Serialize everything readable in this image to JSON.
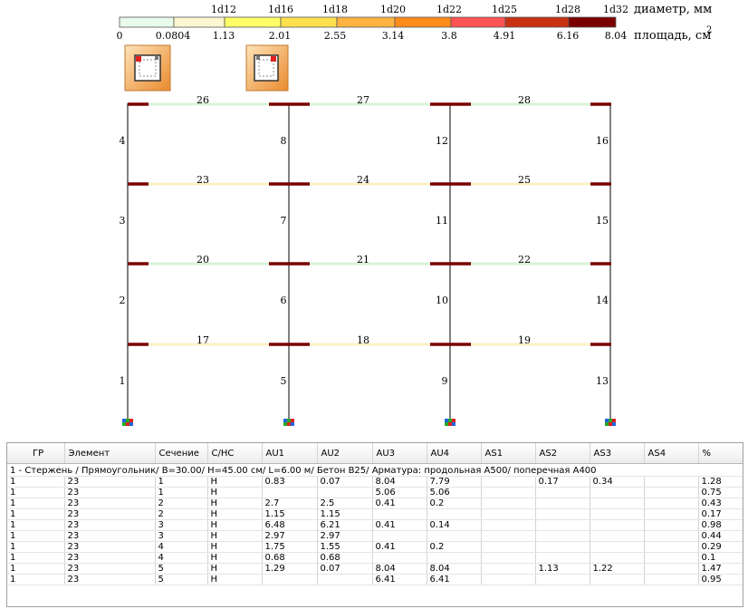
{
  "legend": {
    "diameter_label": "диаметр, мм",
    "area_label": "площадь, см",
    "area_sup": "2",
    "colors": [
      "#e9fbea",
      "#fff6d2",
      "#ffff66",
      "#ffe14d",
      "#ffb340",
      "#ff8c1a",
      "#ff5353",
      "#c83212",
      "#b41e0a",
      "#7a0000"
    ],
    "diameters": [
      "1d12",
      "1d16",
      "1d18",
      "1d20",
      "1d22",
      "1d25",
      "1d28",
      "1d32"
    ],
    "areas": [
      "0",
      "0.0804",
      "1.13",
      "2.01",
      "2.55",
      "3.14",
      "3.8",
      "4.91",
      "6.16",
      "8.04"
    ]
  },
  "frame": {
    "column_numbers": [
      "1",
      "2",
      "3",
      "4",
      "5",
      "6",
      "7",
      "8",
      "9",
      "10",
      "11",
      "12",
      "13",
      "14",
      "15",
      "16"
    ],
    "beam_numbers": [
      "17",
      "18",
      "19",
      "20",
      "21",
      "22",
      "23",
      "24",
      "25",
      "26",
      "27",
      "28"
    ]
  },
  "table": {
    "headers": [
      "ГР",
      "Элемент",
      "Сечение",
      "С/НС",
      "AU1",
      "AU2",
      "AU3",
      "AU4",
      "AS1",
      "AS2",
      "AS3",
      "AS4",
      "%"
    ],
    "group_title": "1 - Стержень /  Прямоугольник/ B=30.00/ H=45.00 см/ L=6.00 м/ Бетон B25/ Арматура: продольная A500/ поперечная  A400",
    "rows": [
      [
        "1",
        "23",
        "1",
        "Н",
        "0.83",
        "0.07",
        "8.04",
        "7.79",
        "",
        "0.17",
        "0.34",
        "",
        "1.28"
      ],
      [
        "1",
        "23",
        "1",
        "Н",
        "",
        "",
        "5.06",
        "5.06",
        "",
        "",
        "",
        "",
        "0.75"
      ],
      [
        "1",
        "23",
        "2",
        "Н",
        "2.7",
        "2.5",
        "0.41",
        "0.2",
        "",
        "",
        "",
        "",
        "0.43"
      ],
      [
        "1",
        "23",
        "2",
        "Н",
        "1.15",
        "1.15",
        "",
        "",
        "",
        "",
        "",
        "",
        "0.17"
      ],
      [
        "1",
        "23",
        "3",
        "Н",
        "6.48",
        "6.21",
        "0.41",
        "0.14",
        "",
        "",
        "",
        "",
        "0.98"
      ],
      [
        "1",
        "23",
        "3",
        "Н",
        "2.97",
        "2.97",
        "",
        "",
        "",
        "",
        "",
        "",
        "0.44"
      ],
      [
        "1",
        "23",
        "4",
        "Н",
        "1.75",
        "1.55",
        "0.41",
        "0.2",
        "",
        "",
        "",
        "",
        "0.29"
      ],
      [
        "1",
        "23",
        "4",
        "Н",
        "0.68",
        "0.68",
        "",
        "",
        "",
        "",
        "",
        "",
        "0.1"
      ],
      [
        "1",
        "23",
        "5",
        "Н",
        "1.29",
        "0.07",
        "8.04",
        "8.04",
        "",
        "1.13",
        "1.22",
        "",
        "1.47"
      ],
      [
        "1",
        "23",
        "5",
        "Н",
        "",
        "",
        "6.41",
        "6.41",
        "",
        "",
        "",
        "",
        "0.95"
      ]
    ]
  }
}
